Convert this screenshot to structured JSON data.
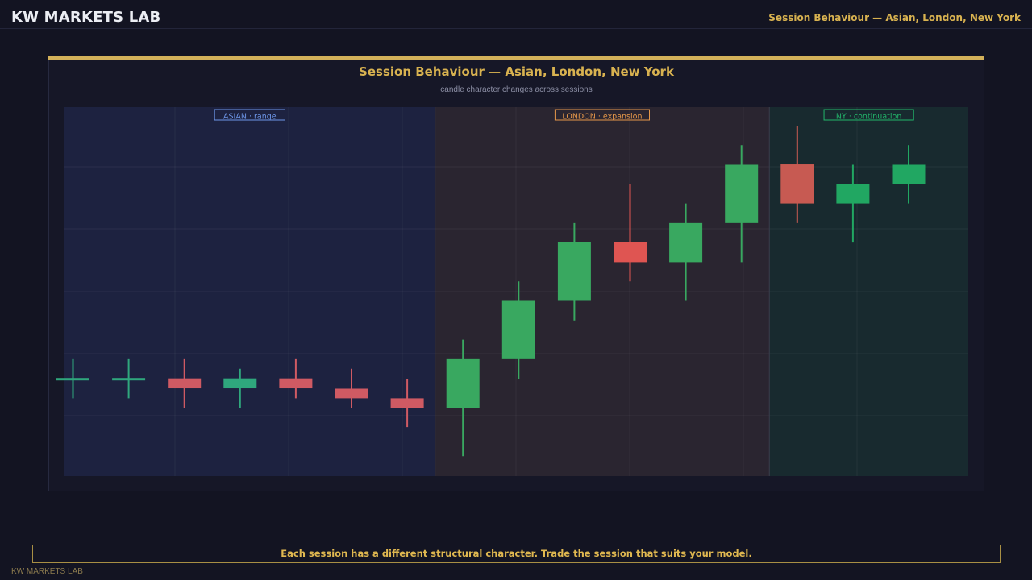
{
  "header": {
    "brand": "KW MARKETS LAB",
    "title": "Session Behaviour — Asian, London, New York"
  },
  "footer": {
    "note": "Each session has a different structural character. Trade the session that suits your model.",
    "brand": "KW MARKETS LAB"
  },
  "colors": {
    "bull": "#39a860",
    "bear": "#df5552",
    "asian_bull": "#2fa77d",
    "asian_bear": "#cf5a63",
    "ny_bull": "#21a762",
    "ny_bear": "#c75a52",
    "accent": "#d8b250"
  },
  "chart_data": {
    "type": "candlestick",
    "title": "Session Behaviour — Asian, London, New York",
    "subtitle": "candle character changes across sessions",
    "grid": true,
    "y_range": [
      0,
      100
    ],
    "sessions": [
      {
        "label": "ASIAN · range",
        "start": 0,
        "end": 6,
        "fill": "#1d2240",
        "stroke": "#6d96e8",
        "text_color": "#6d96e8"
      },
      {
        "label": "LONDON · expansion",
        "start": 7,
        "end": 12,
        "fill": "#2a2530",
        "stroke": "#e6984a",
        "text_color": "#e6984a"
      },
      {
        "label": "NY · continuation",
        "start": 13,
        "end": 15,
        "fill": "#182a2f",
        "stroke": "#22b56a",
        "text_color": "#22b56a"
      }
    ],
    "candles": [
      {
        "open": 25.3,
        "high": 30.6,
        "low": 20.0,
        "close": 25.5,
        "session": "asian"
      },
      {
        "open": 25.3,
        "high": 30.6,
        "low": 20.0,
        "close": 25.5,
        "session": "asian"
      },
      {
        "open": 25.4,
        "high": 30.6,
        "low": 17.4,
        "close": 22.7,
        "session": "asian"
      },
      {
        "open": 22.7,
        "high": 28.0,
        "low": 17.4,
        "close": 25.4,
        "session": "asian"
      },
      {
        "open": 25.4,
        "high": 30.6,
        "low": 20.0,
        "close": 22.7,
        "session": "asian"
      },
      {
        "open": 22.6,
        "high": 28.0,
        "low": 17.4,
        "close": 20.0,
        "session": "asian"
      },
      {
        "open": 20.0,
        "high": 25.2,
        "low": 12.2,
        "close": 17.4,
        "session": "asian"
      },
      {
        "open": 17.4,
        "high": 35.9,
        "low": 4.3,
        "close": 30.6,
        "session": "london"
      },
      {
        "open": 30.6,
        "high": 51.7,
        "low": 25.3,
        "close": 46.4,
        "session": "london"
      },
      {
        "open": 46.4,
        "high": 67.5,
        "low": 41.1,
        "close": 62.3,
        "session": "london"
      },
      {
        "open": 62.3,
        "high": 78.1,
        "low": 51.7,
        "close": 56.9,
        "session": "london"
      },
      {
        "open": 56.9,
        "high": 72.8,
        "low": 46.4,
        "close": 67.5,
        "session": "london"
      },
      {
        "open": 67.5,
        "high": 88.6,
        "low": 56.9,
        "close": 83.3,
        "session": "london"
      },
      {
        "open": 83.4,
        "high": 93.9,
        "low": 67.5,
        "close": 72.8,
        "session": "ny"
      },
      {
        "open": 72.8,
        "high": 83.3,
        "low": 62.2,
        "close": 78.1,
        "session": "ny"
      },
      {
        "open": 78.1,
        "high": 88.6,
        "low": 72.8,
        "close": 83.3,
        "session": "ny"
      }
    ]
  }
}
